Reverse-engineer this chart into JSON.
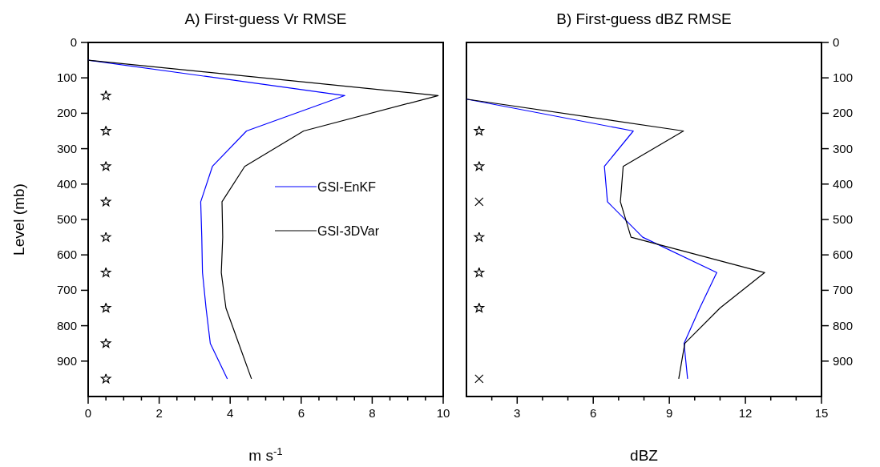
{
  "chart_data": [
    {
      "type": "line",
      "title": "A)  First-guess Vr RMSE",
      "xlabel": "m s$^{-1}$",
      "ylabel": "Level (mb)",
      "xlim": [
        0,
        10
      ],
      "xticks": [
        0,
        {
          "value": 0.5,
          "label": null
        },
        2,
        {
          "value": 1,
          "label": null
        },
        {
          "value": 1.5,
          "label": null
        },
        {
          "value": 2.5,
          "label": null
        },
        {
          "value": 3,
          "label": null
        },
        {
          "value": 3.5,
          "label": null
        },
        4,
        {
          "value": 4.5,
          "label": null
        },
        {
          "value": 5,
          "label": null
        },
        {
          "value": 5.5,
          "label": null
        },
        6,
        {
          "value": 6.5,
          "label": null
        },
        {
          "value": 7,
          "label": null
        },
        {
          "value": 7.5,
          "label": null
        },
        8,
        {
          "value": 8.5,
          "label": null
        },
        {
          "value": 9,
          "label": null
        },
        {
          "value": 9.5,
          "label": null
        },
        10
      ],
      "ylim": [
        1000,
        0
      ],
      "yticks": [
        0,
        100,
        200,
        300,
        400,
        500,
        600,
        700,
        800,
        900
      ],
      "legend": "right",
      "grid": false,
      "series": [
        {
          "name": "GSI-EnKF",
          "color": "#0000ff",
          "x": [
            0,
            7.23,
            4.46,
            3.5,
            3.17,
            3.2,
            3.22,
            3.32,
            3.44,
            3.92
          ],
          "values": [
            50,
            150,
            250,
            350,
            450,
            550,
            650,
            750,
            850,
            950
          ]
        },
        {
          "name": "GSI-3DVar",
          "color": "#000000",
          "x": [
            0,
            9.86,
            6.07,
            4.41,
            3.77,
            3.79,
            3.75,
            3.88,
            4.24,
            4.6
          ],
          "values": [
            50,
            150,
            250,
            350,
            450,
            550,
            650,
            750,
            850,
            950
          ]
        },
        {
          "type": "scatter",
          "marker": "star",
          "color": "#000000",
          "x": [
            0.5,
            0.5,
            0.5,
            0.5,
            0.5,
            0.5,
            0.5,
            0.5,
            0.5
          ],
          "values": [
            150,
            250,
            350,
            450,
            550,
            650,
            750,
            850,
            950
          ]
        }
      ]
    },
    {
      "type": "line",
      "title": "B)  First-guess dBZ RMSE",
      "xlabel": "dBZ",
      "xlim": [
        1,
        15
      ],
      "xticks": [
        {
          "value": 2,
          "label": null
        },
        3,
        {
          "value": 4,
          "label": null
        },
        {
          "value": 5,
          "label": null
        },
        6,
        {
          "value": 7,
          "label": null
        },
        {
          "value": 8,
          "label": null
        },
        9,
        {
          "value": 10,
          "label": null
        },
        {
          "value": 11,
          "label": null
        },
        12,
        {
          "value": 13,
          "label": null
        },
        {
          "value": 14,
          "label": null
        },
        15
      ],
      "ylim": [
        1000,
        0
      ],
      "yticks": [
        0,
        100,
        200,
        300,
        400,
        500,
        600,
        700,
        800,
        900
      ],
      "grid": false,
      "series": [
        {
          "color": "#0000ff",
          "x": [
            1,
            7.58,
            6.44,
            6.56,
            7.95,
            10.87,
            10.2,
            9.58,
            9.72
          ],
          "values": [
            160,
            250,
            350,
            450,
            550,
            650,
            750,
            850,
            950
          ]
        },
        {
          "color": "#000000",
          "x": [
            1,
            9.56,
            7.18,
            7.07,
            7.49,
            12.76,
            11,
            9.61,
            9.37
          ],
          "values": [
            160,
            250,
            350,
            450,
            550,
            650,
            750,
            850,
            950
          ]
        },
        {
          "type": "scatter",
          "marker": "star",
          "color": "#000000",
          "x": [
            1.5,
            1.5,
            1.5,
            1.5,
            1.5
          ],
          "values": [
            250,
            350,
            550,
            650,
            750
          ]
        },
        {
          "type": "scatter",
          "marker": "cross",
          "color": "#000000",
          "x": [
            1.5,
            1.5
          ],
          "values": [
            450,
            950
          ]
        }
      ]
    }
  ]
}
